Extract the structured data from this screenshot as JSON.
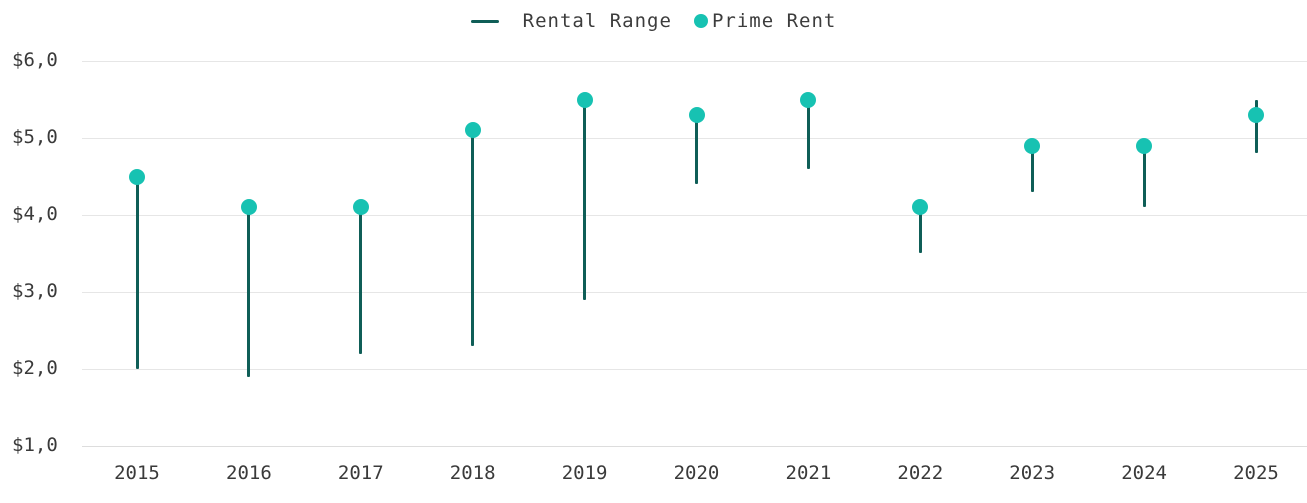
{
  "chart": {
    "legend": [
      {
        "label": "Rental Range",
        "swatch": "line-swatch",
        "color": "#0f5e57"
      },
      {
        "label": "Prime Rent",
        "swatch": "dot-swatch",
        "color": "#17c2b2"
      }
    ],
    "colors": {
      "range_line": "#0f5e57",
      "prime_dot": "#17c2b2",
      "text": "#3a3a3a",
      "gridline": "#e6e6e6",
      "background": "#ffffff"
    }
  },
  "chart_data": {
    "type": "lollipop-range",
    "title": "",
    "xlabel": "",
    "ylabel": "",
    "categories": [
      "2015",
      "2016",
      "2017",
      "2018",
      "2019",
      "2020",
      "2021",
      "2022",
      "2023",
      "2024",
      "2025"
    ],
    "series": [
      {
        "name": "Rental Range",
        "type": "range-bar",
        "color": "#0f5e57",
        "values": [
          [
            2.0,
            4.5
          ],
          [
            1.9,
            4.1
          ],
          [
            2.2,
            4.1
          ],
          [
            2.3,
            5.1
          ],
          [
            2.9,
            5.5
          ],
          [
            4.4,
            5.3
          ],
          [
            4.6,
            5.5
          ],
          [
            3.5,
            4.1
          ],
          [
            4.3,
            4.9
          ],
          [
            4.1,
            4.9
          ],
          [
            4.8,
            5.5
          ]
        ]
      },
      {
        "name": "Prime Rent",
        "type": "scatter",
        "color": "#17c2b2",
        "values": [
          4.5,
          4.1,
          4.1,
          5.1,
          5.5,
          5.3,
          5.5,
          4.1,
          4.9,
          4.9,
          5.3
        ]
      }
    ],
    "ylim": [
      1.0,
      6.0
    ],
    "yticks": [
      1.0,
      2.0,
      3.0,
      4.0,
      5.0,
      6.0
    ],
    "ytick_labels": [
      "$1,0",
      "$2,0",
      "$3,0",
      "$4,0",
      "$5,0",
      "$6,0"
    ],
    "grid": "horizontal",
    "legend_position": "top-center"
  }
}
